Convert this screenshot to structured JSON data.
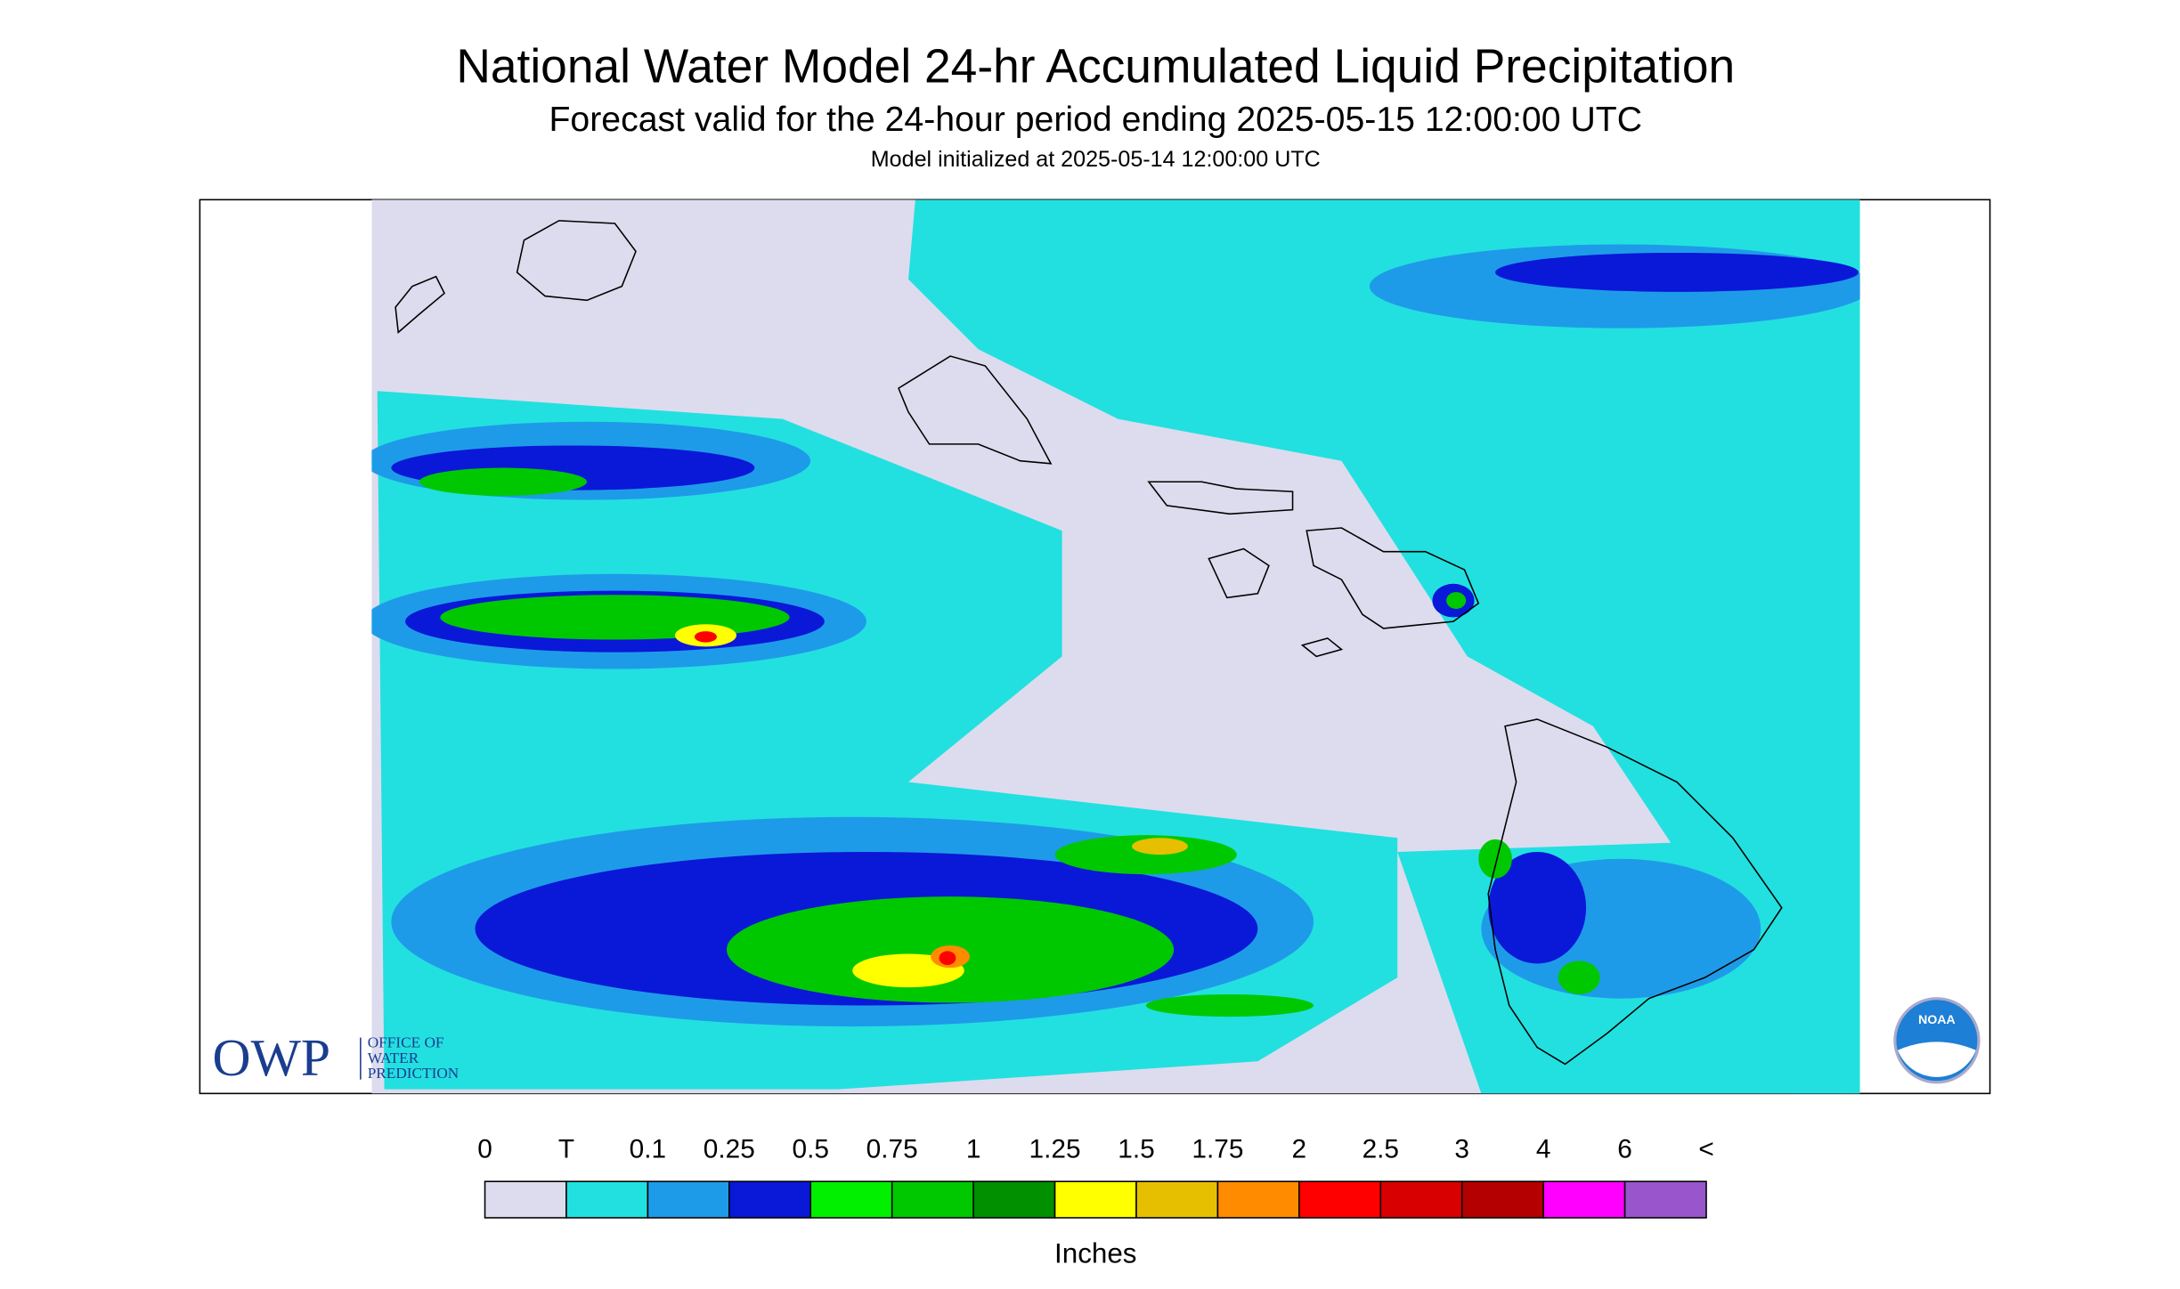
{
  "header": {
    "title": "National Water Model 24-hr Accumulated Liquid Precipitation",
    "subtitle": "Forecast valid for the 24-hour period ending 2025-05-15 12:00:00 UTC",
    "init": "Model initialized at 2025-05-14 12:00:00 UTC"
  },
  "logos": {
    "owp": "OWP",
    "owp_name": [
      "OFFICE OF",
      "WATER",
      "PREDICTION"
    ],
    "noaa": "NOAA"
  },
  "legend": {
    "labels": [
      "0",
      "T",
      "0.1",
      "0.25",
      "0.5",
      "0.75",
      "1",
      "1.25",
      "1.5",
      "1.75",
      "2",
      "2.5",
      "3",
      "4",
      "6",
      "<"
    ],
    "colors": [
      "#dcdcee",
      "#22e0e0",
      "#1e9be8",
      "#0a18d8",
      "#00f000",
      "#00c800",
      "#009000",
      "#ffff00",
      "#e6c000",
      "#ff8c00",
      "#ff0000",
      "#d80000",
      "#b40000",
      "#ff00ff",
      "#9955cc"
    ],
    "unit": "Inches"
  }
}
